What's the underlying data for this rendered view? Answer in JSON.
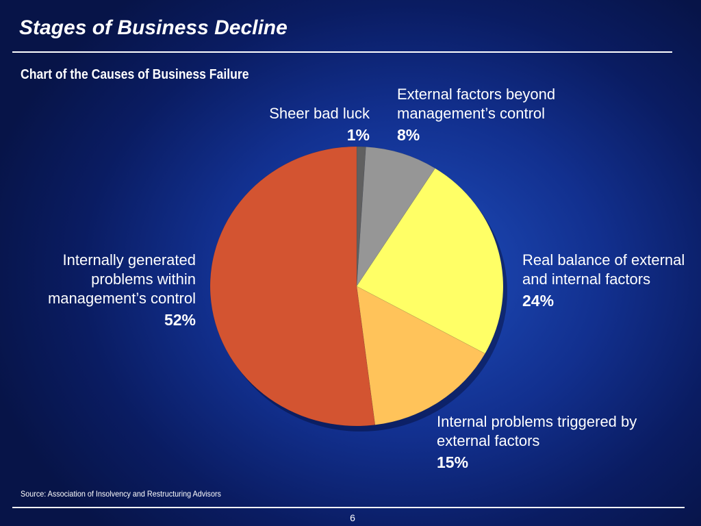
{
  "slide": {
    "title": "Stages of Business Decline",
    "source": "Source: Association of Insolvency and Restructuring Advisors",
    "page_number": "6"
  },
  "chart_data": {
    "type": "pie",
    "title": "Chart of the Causes of Business Failure",
    "slices": [
      {
        "label": "Sheer bad luck",
        "value": 1,
        "value_label": "1%",
        "color": "#606060"
      },
      {
        "label": "External factors beyond management’s control",
        "value": 8,
        "value_label": "8%",
        "color": "#969696"
      },
      {
        "label": "Real balance of external and internal factors",
        "value": 24,
        "value_label": "24%",
        "color": "#ffff66"
      },
      {
        "label": "Internal problems triggered by external factors",
        "value": 15,
        "value_label": "15%",
        "color": "#ffc35a"
      },
      {
        "label": "Internally generated problems within management’s control",
        "value": 52,
        "value_label": "52%",
        "color": "#d35431"
      }
    ]
  }
}
